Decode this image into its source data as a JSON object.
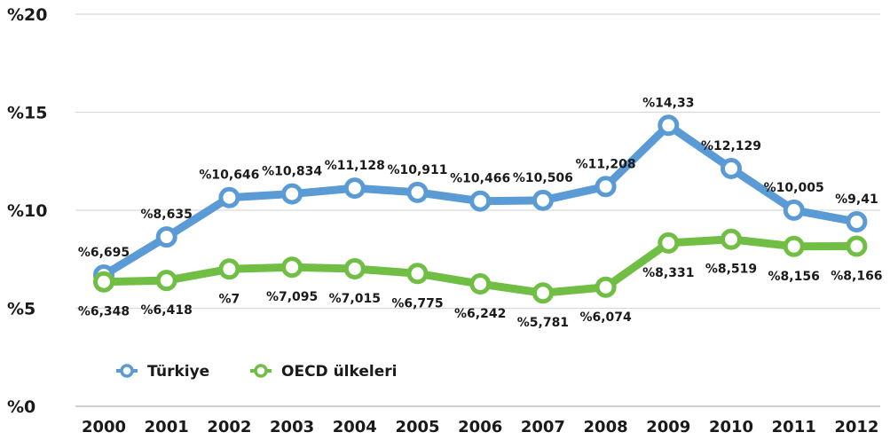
{
  "chart_data": {
    "type": "line",
    "x": [
      "2000",
      "2001",
      "2002",
      "2003",
      "2004",
      "2005",
      "2006",
      "2007",
      "2008",
      "2009",
      "2010",
      "2011",
      "2012"
    ],
    "y_ticks": [
      "%0",
      "%5",
      "%10",
      "%15",
      "%20"
    ],
    "ylim": [
      0,
      20
    ],
    "grid": true,
    "legend_position": "bottom-left",
    "series": [
      {
        "name": "Türkiye",
        "color": "#5b9bd5",
        "values": [
          6.695,
          8.635,
          10.646,
          10.834,
          11.128,
          10.911,
          10.466,
          10.506,
          11.208,
          14.33,
          12.129,
          10.005,
          9.41
        ],
        "labels": [
          "%6,695",
          "%8,635",
          "%10,646",
          "%10,834",
          "%11,128",
          "%10,911",
          "%10,466",
          "%10,506",
          "%11,208",
          "%14,33",
          "%12,129",
          "%10,005",
          "%9,41"
        ]
      },
      {
        "name": "OECD ülkeleri",
        "color": "#70bf44",
        "values": [
          6.348,
          6.418,
          7.0,
          7.095,
          7.015,
          6.775,
          6.242,
          5.781,
          6.074,
          8.331,
          8.519,
          8.156,
          8.166
        ],
        "labels": [
          "%6,348",
          "%6,418",
          "%7",
          "%7,095",
          "%7,015",
          "%6,775",
          "%6,242",
          "%5,781",
          "%6,074",
          "%8,331",
          "%8,519",
          "%8,156",
          "%8,166"
        ]
      }
    ]
  }
}
